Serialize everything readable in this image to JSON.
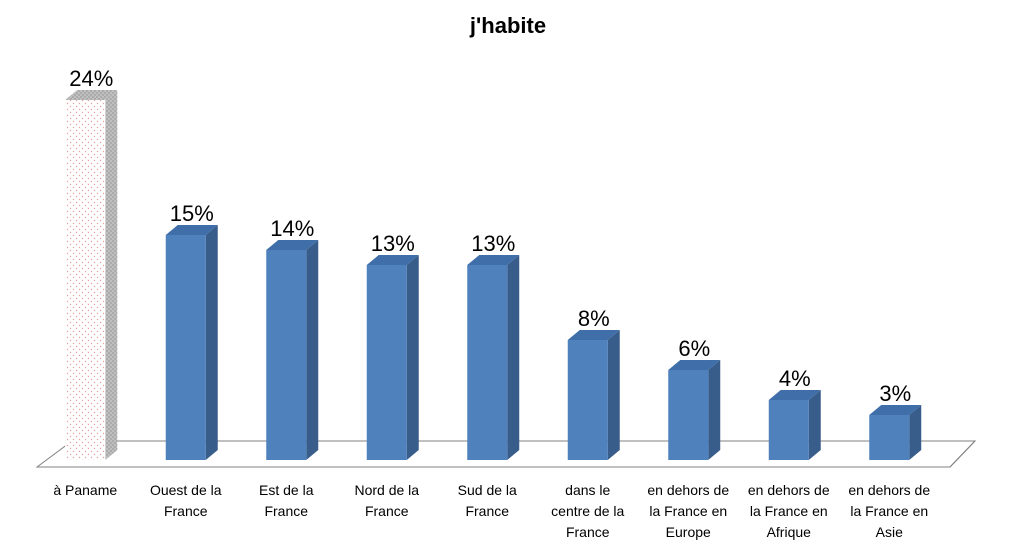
{
  "chart_data": {
    "type": "bar",
    "title": "j'habite",
    "xlabel": "",
    "ylabel": "",
    "ylim": [
      0,
      24
    ],
    "grid": false,
    "legend": "none",
    "value_format": "percent",
    "categories": [
      [
        "à Paname"
      ],
      [
        "Ouest de la",
        "France"
      ],
      [
        "Est de la",
        "France"
      ],
      [
        "Nord de la",
        "France"
      ],
      [
        "Sud de la",
        "France"
      ],
      [
        "dans le",
        "centre de la",
        "France"
      ],
      [
        "en dehors de",
        "la France en",
        "Europe"
      ],
      [
        "en dehors de",
        "la France en",
        "Afrique"
      ],
      [
        "en dehors de",
        "la France en",
        "Asie"
      ]
    ],
    "values": [
      24,
      15,
      14,
      13,
      13,
      8,
      6,
      4,
      3
    ],
    "labels": [
      "24%",
      "15%",
      "14%",
      "13%",
      "13%",
      "8%",
      "6%",
      "4%",
      "3%"
    ],
    "colors": {
      "bar_front": "#4f81bd",
      "bar_side": "#385d8a",
      "bar_top": "#3f6ea8",
      "highlight_fill": "#ffffff",
      "highlight_dots": "#e6a0a0",
      "highlight_side": "#a6a6a6",
      "floor_stroke": "#808080"
    },
    "highlight_index": 0
  }
}
